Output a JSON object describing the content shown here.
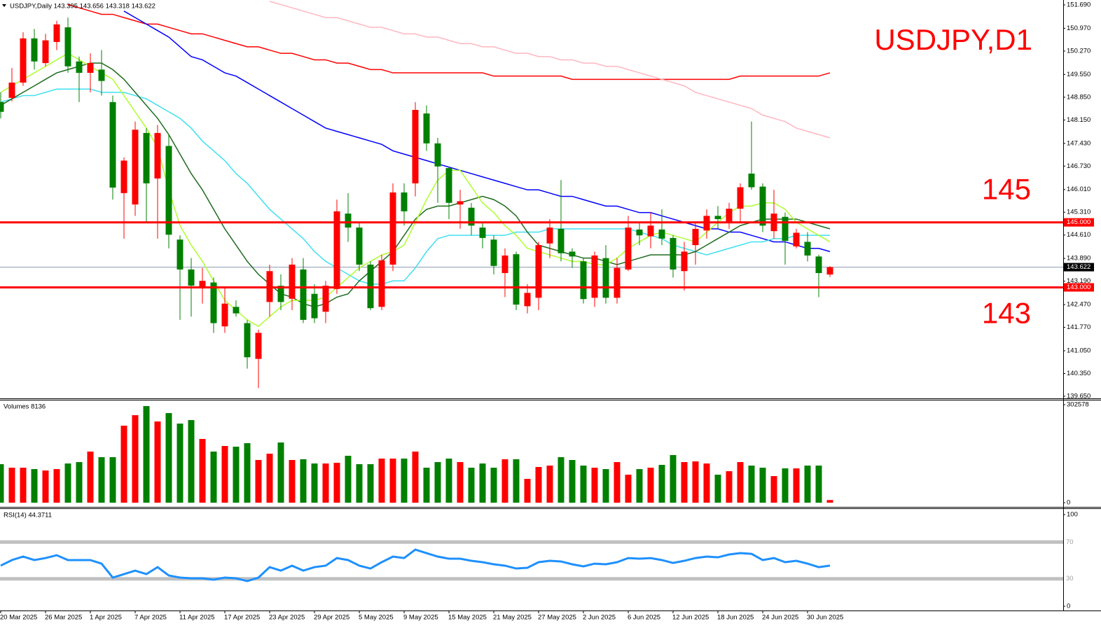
{
  "chart_data": [
    {
      "type": "candlestick",
      "title": "USDJPY,Daily 143.395 143.656 143.318 143.622",
      "annotation": "USDJPY,D1",
      "categories": [
        "20 Mar 2025",
        null,
        null,
        null,
        "26 Mar 2025",
        null,
        null,
        null,
        "1 Apr 2025",
        null,
        null,
        null,
        "7 Apr 2025",
        null,
        null,
        null,
        "11 Apr 2025",
        null,
        null,
        null,
        "17 Apr 2025",
        null,
        null,
        null,
        "23 Apr 2025",
        null,
        null,
        null,
        "29 Apr 2025",
        null,
        null,
        null,
        "5 May 2025",
        null,
        null,
        null,
        "9 May 2025",
        null,
        null,
        null,
        "15 May 2025",
        null,
        null,
        null,
        "21 May 2025",
        null,
        null,
        null,
        "27 May 2025",
        null,
        null,
        null,
        "2 Jun 2025",
        null,
        null,
        null,
        "6 Jun 2025",
        null,
        null,
        null,
        "12 Jun 2025",
        null,
        null,
        null,
        "18 Jun 2025",
        null,
        null,
        null,
        "24 Jun 2025",
        null,
        null,
        null,
        "30 Jun 2025",
        null,
        null
      ],
      "open": [
        148.7,
        148.83,
        149.3,
        150.66,
        149.9,
        150.55,
        151.0,
        149.95,
        149.6,
        149.7,
        148.7,
        145.9,
        145.55,
        147.75,
        146.35,
        147.35,
        144.47,
        143.55,
        143.0,
        143.15,
        141.8,
        142.4,
        141.9,
        140.8,
        142.55,
        143.05,
        142.65,
        143.55,
        142.8,
        142.25,
        142.95,
        145.27,
        144.84,
        143.7,
        142.4,
        143.7,
        145.92,
        146.2,
        148.35,
        147.43,
        146.67,
        145.55,
        145.45,
        144.84,
        144.47,
        143.44,
        144.02,
        142.42,
        142.68,
        144.35,
        144.8,
        144.1,
        143.8,
        142.68,
        143.9,
        142.68,
        143.55,
        144.78,
        144.57,
        144.78,
        144.52,
        143.5,
        144.3,
        144.75,
        145.2,
        145.0,
        145.42,
        146.5,
        146.1,
        144.73,
        145.17,
        144.26,
        144.4,
        143.95,
        143.395
      ],
      "high": [
        149.0,
        149.75,
        150.85,
        150.95,
        150.8,
        151.2,
        151.3,
        150.1,
        150.2,
        150.3,
        148.9,
        147.0,
        148.1,
        147.9,
        148.0,
        147.7,
        144.6,
        143.9,
        143.6,
        143.3,
        143.0,
        142.6,
        142.0,
        141.7,
        143.7,
        143.4,
        143.9,
        143.9,
        143.1,
        143.2,
        145.7,
        145.9,
        145.0,
        143.8,
        144.0,
        146.2,
        146.2,
        148.7,
        148.6,
        147.6,
        146.7,
        146.0,
        145.6,
        145.0,
        144.6,
        144.2,
        144.1,
        143.1,
        144.4,
        145.1,
        146.3,
        144.2,
        143.9,
        144.1,
        144.3,
        143.9,
        145.2,
        145.0,
        145.3,
        145.4,
        144.6,
        144.4,
        145.0,
        145.4,
        145.5,
        145.6,
        146.2,
        148.1,
        146.2,
        146.0,
        145.3,
        144.8,
        144.7,
        144.0,
        143.656
      ],
      "low": [
        148.2,
        148.72,
        149.2,
        149.7,
        149.8,
        150.3,
        149.6,
        148.7,
        149.0,
        148.9,
        145.7,
        144.5,
        145.2,
        145.0,
        144.5,
        144.2,
        142.0,
        142.1,
        142.5,
        141.6,
        141.6,
        142.1,
        140.5,
        139.9,
        142.1,
        142.3,
        142.3,
        141.9,
        141.9,
        141.9,
        142.8,
        144.4,
        143.5,
        142.3,
        142.3,
        143.5,
        144.9,
        145.8,
        147.2,
        145.6,
        145.1,
        144.8,
        144.6,
        144.2,
        143.4,
        142.7,
        142.3,
        142.2,
        142.3,
        143.9,
        143.8,
        143.6,
        142.5,
        142.4,
        142.5,
        142.5,
        143.5,
        144.3,
        144.2,
        144.3,
        143.3,
        142.9,
        143.7,
        144.5,
        144.8,
        144.8,
        145.0,
        146.0,
        144.7,
        144.5,
        143.7,
        144.2,
        143.8,
        142.7,
        143.318
      ],
      "close": [
        148.4,
        149.3,
        150.66,
        149.95,
        150.6,
        151.09,
        149.8,
        149.6,
        149.9,
        149.35,
        146.07,
        146.9,
        147.85,
        146.2,
        147.75,
        144.62,
        143.55,
        143.05,
        143.2,
        141.9,
        142.5,
        142.2,
        140.85,
        141.6,
        143.5,
        142.55,
        143.7,
        142.0,
        142.05,
        143.05,
        145.34,
        144.84,
        143.7,
        142.36,
        143.83,
        145.92,
        145.34,
        148.46,
        147.43,
        146.72,
        145.6,
        145.65,
        144.9,
        144.52,
        143.66,
        143.98,
        142.47,
        142.83,
        144.3,
        144.84,
        144.05,
        143.95,
        142.64,
        143.98,
        142.68,
        143.6,
        144.84,
        144.6,
        144.9,
        144.5,
        143.55,
        144.1,
        144.8,
        145.2,
        145.1,
        145.42,
        146.08,
        146.08,
        144.9,
        145.27,
        144.43,
        144.68,
        143.98,
        143.44,
        143.622
      ],
      "up_color": "#ff0000",
      "down_color": "#008000",
      "series": [
        {
          "color": "#ff0000",
          "values": [
            null,
            null,
            null,
            null,
            null,
            null,
            151.7,
            151.6,
            151.5,
            151.4,
            151.4,
            151.3,
            151.2,
            151.1,
            151.1,
            151.0,
            150.9,
            150.8,
            150.8,
            150.7,
            150.6,
            150.5,
            150.4,
            150.4,
            150.3,
            150.2,
            150.2,
            150.1,
            150.0,
            150.0,
            149.9,
            149.9,
            149.8,
            149.7,
            149.7,
            149.6,
            149.6,
            149.6,
            149.6,
            149.6,
            149.6,
            149.6,
            149.6,
            149.6,
            149.5,
            149.5,
            149.5,
            149.5,
            149.5,
            149.5,
            149.5,
            149.4,
            149.4,
            149.4,
            149.4,
            149.4,
            149.4,
            149.4,
            149.4,
            149.4,
            149.4,
            149.4,
            149.4,
            149.4,
            149.4,
            149.4,
            149.5,
            149.5,
            149.5,
            149.5,
            149.5,
            149.5,
            149.5,
            149.5,
            149.6
          ]
        },
        {
          "color": "#ffb6c1",
          "values": [
            null,
            null,
            null,
            null,
            null,
            null,
            null,
            null,
            null,
            null,
            null,
            null,
            null,
            null,
            null,
            null,
            null,
            null,
            null,
            null,
            null,
            null,
            null,
            null,
            151.8,
            151.7,
            151.6,
            151.5,
            151.4,
            151.3,
            151.3,
            151.2,
            151.1,
            151.0,
            151.0,
            150.9,
            150.8,
            150.8,
            150.7,
            150.7,
            150.6,
            150.5,
            150.5,
            150.4,
            150.4,
            150.3,
            150.2,
            150.2,
            150.1,
            150.1,
            150.0,
            150.0,
            149.9,
            149.9,
            149.8,
            149.8,
            149.7,
            149.6,
            149.5,
            149.4,
            149.3,
            149.2,
            149.0,
            148.9,
            148.8,
            148.7,
            148.6,
            148.5,
            148.3,
            148.2,
            148.1,
            147.9,
            147.8,
            147.7,
            147.6
          ]
        },
        {
          "color": "#0000ff",
          "values": [
            null,
            null,
            null,
            null,
            null,
            null,
            null,
            null,
            null,
            null,
            null,
            151.5,
            151.3,
            151.1,
            150.9,
            150.7,
            150.4,
            150.1,
            150.0,
            149.8,
            149.6,
            149.5,
            149.3,
            149.1,
            148.9,
            148.7,
            148.5,
            148.3,
            148.1,
            147.9,
            147.8,
            147.7,
            147.6,
            147.5,
            147.4,
            147.2,
            147.1,
            147.0,
            146.9,
            146.8,
            146.7,
            146.6,
            146.5,
            146.4,
            146.3,
            146.2,
            146.1,
            146.0,
            146.0,
            145.9,
            145.8,
            145.8,
            145.7,
            145.6,
            145.5,
            145.5,
            145.4,
            145.3,
            145.3,
            145.2,
            145.1,
            145.0,
            144.9,
            144.8,
            144.8,
            144.7,
            144.7,
            144.6,
            144.5,
            144.4,
            144.4,
            144.3,
            144.2,
            144.2,
            144.1
          ]
        },
        {
          "color": "#40e0f0",
          "values": [
            148.7,
            148.8,
            148.9,
            148.9,
            149.0,
            149.1,
            149.1,
            149.1,
            149.1,
            149.0,
            149.0,
            149.0,
            148.9,
            148.8,
            148.6,
            148.4,
            148.2,
            147.9,
            147.5,
            147.2,
            146.9,
            146.5,
            146.2,
            145.8,
            145.4,
            145.1,
            144.8,
            144.5,
            144.1,
            143.8,
            143.6,
            143.4,
            143.2,
            143.1,
            143.1,
            143.2,
            143.2,
            143.6,
            144.1,
            144.5,
            144.6,
            144.6,
            144.6,
            144.6,
            144.6,
            144.6,
            144.7,
            144.7,
            144.7,
            144.8,
            144.8,
            144.8,
            144.8,
            144.8,
            144.8,
            144.8,
            144.8,
            144.7,
            144.6,
            144.5,
            144.3,
            144.2,
            144.1,
            144.0,
            144.1,
            144.2,
            144.3,
            144.4,
            144.4,
            144.5,
            144.5,
            144.6,
            144.6,
            144.6,
            144.6
          ]
        },
        {
          "color": "#1e6b1e",
          "values": [
            148.6,
            148.8,
            149.0,
            149.2,
            149.4,
            149.6,
            149.7,
            149.8,
            149.9,
            149.9,
            149.7,
            149.4,
            149.0,
            148.6,
            148.2,
            147.7,
            147.1,
            146.5,
            146.0,
            145.4,
            144.8,
            144.3,
            143.8,
            143.4,
            143.1,
            142.8,
            142.7,
            142.5,
            142.4,
            142.5,
            142.7,
            142.8,
            143.2,
            143.5,
            143.8,
            144.1,
            144.6,
            145.1,
            145.4,
            145.5,
            145.5,
            145.6,
            145.7,
            145.8,
            145.7,
            145.5,
            145.2,
            144.7,
            144.3,
            144.2,
            144.1,
            144.0,
            143.9,
            143.9,
            143.8,
            143.7,
            143.8,
            143.9,
            144.0,
            144.0,
            144.0,
            144.0,
            144.1,
            144.3,
            144.5,
            144.7,
            144.9,
            145.0,
            145.1,
            145.1,
            145.1,
            145.1,
            145.0,
            144.9,
            144.8
          ]
        },
        {
          "color": "#adff2f",
          "values": [
            149.0,
            149.2,
            149.4,
            149.6,
            149.8,
            150.0,
            150.2,
            150.0,
            149.8,
            149.6,
            149.4,
            148.9,
            148.4,
            147.9,
            147.3,
            146.0,
            144.9,
            144.3,
            143.8,
            143.2,
            142.6,
            142.3,
            142.0,
            141.8,
            142.1,
            142.4,
            142.6,
            142.6,
            142.6,
            142.7,
            143.0,
            143.3,
            143.6,
            143.8,
            144.0,
            144.1,
            144.3,
            145.0,
            145.7,
            146.3,
            146.6,
            146.6,
            146.1,
            145.6,
            145.3,
            144.9,
            144.6,
            144.2,
            144.1,
            144.0,
            143.9,
            143.8,
            143.8,
            143.7,
            143.7,
            143.9,
            144.2,
            144.4,
            144.6,
            144.7,
            144.6,
            144.5,
            144.4,
            144.7,
            145.0,
            145.3,
            145.5,
            145.5,
            145.6,
            145.6,
            145.4,
            145.0,
            144.8,
            144.6,
            144.4
          ]
        }
      ],
      "levels": [
        {
          "value": 145,
          "label": "145.000",
          "annotation": "145",
          "color": "#ff0000"
        },
        {
          "value": 143,
          "label": "143.000",
          "annotation": "143",
          "color": "#ff0000"
        }
      ],
      "last_price": {
        "value": 143.622,
        "label": "143.622"
      },
      "ylim": [
        139.65,
        151.69
      ],
      "yticks": [
        {
          "value": 151.69,
          "label": "151.690"
        },
        {
          "value": 150.97,
          "label": "150.970"
        },
        {
          "value": 150.27,
          "label": "150.270"
        },
        {
          "value": 149.55,
          "label": "149.550"
        },
        {
          "value": 148.85,
          "label": "148.850"
        },
        {
          "value": 148.15,
          "label": "148.150"
        },
        {
          "value": 147.43,
          "label": "147.430"
        },
        {
          "value": 146.73,
          "label": "146.730"
        },
        {
          "value": 146.01,
          "label": "146.010"
        },
        {
          "value": 145.31,
          "label": "145.310"
        },
        {
          "value": 144.61,
          "label": "144.610"
        },
        {
          "value": 143.89,
          "label": "143.890"
        },
        {
          "value": 143.19,
          "label": "143.190"
        },
        {
          "value": 142.47,
          "label": "142.470"
        },
        {
          "value": 141.77,
          "label": "141.770"
        },
        {
          "value": 141.05,
          "label": "141.050"
        },
        {
          "value": 140.35,
          "label": "140.350"
        },
        {
          "value": 139.65,
          "label": "139.650"
        }
      ]
    },
    {
      "type": "volume",
      "title": "Volumes 8136",
      "values": [
        118900,
        108000,
        108000,
        103700,
        99400,
        103700,
        121000,
        125300,
        157800,
        140500,
        140500,
        237700,
        270100,
        298200,
        250700,
        276600,
        244200,
        255000,
        196700,
        157800,
        175000,
        172900,
        183700,
        131800,
        151300,
        185800,
        131800,
        134000,
        121000,
        121000,
        123200,
        144800,
        118900,
        118900,
        136100,
        136100,
        136100,
        157800,
        108000,
        125300,
        136100,
        125300,
        108000,
        121000,
        108000,
        134000,
        134000,
        73500,
        110200,
        114500,
        140500,
        131800,
        114500,
        108000,
        103700,
        125300,
        86400,
        103700,
        108000,
        116700,
        147000,
        125300,
        127500,
        121000,
        86400,
        97200,
        125300,
        114500,
        108000,
        82100,
        105900,
        105900,
        114500,
        114500,
        8136
      ],
      "ylim": [
        0,
        302578
      ],
      "yticks": [
        0,
        302578
      ]
    },
    {
      "type": "line",
      "title": "RSI(14) 44.3711",
      "color": "#1e90ff",
      "values": [
        44.3,
        50.4,
        54.2,
        50.4,
        52.6,
        55.7,
        50.4,
        50.4,
        50.4,
        46.5,
        31.3,
        35.1,
        38.9,
        35.1,
        42.7,
        33.6,
        31.3,
        30.5,
        30.5,
        29.0,
        31.3,
        30.5,
        27.5,
        31.3,
        42.7,
        38.9,
        44.3,
        38.9,
        42.7,
        44.3,
        52.6,
        50.4,
        44.3,
        41.2,
        48.1,
        54.2,
        52.6,
        61.8,
        58.0,
        54.2,
        51.9,
        51.9,
        49.6,
        48.1,
        45.8,
        44.3,
        41.2,
        42.0,
        48.1,
        49.6,
        48.9,
        45.8,
        43.5,
        46.5,
        45.8,
        48.1,
        52.6,
        51.9,
        52.6,
        50.4,
        47.3,
        49.6,
        52.6,
        54.2,
        53.4,
        56.5,
        58.0,
        57.2,
        50.4,
        52.6,
        48.1,
        49.6,
        46.5,
        42.7,
        44.3711
      ],
      "levels": [
        70,
        30
      ],
      "ylim": [
        0,
        100
      ],
      "yticks": [
        100,
        0
      ]
    }
  ]
}
